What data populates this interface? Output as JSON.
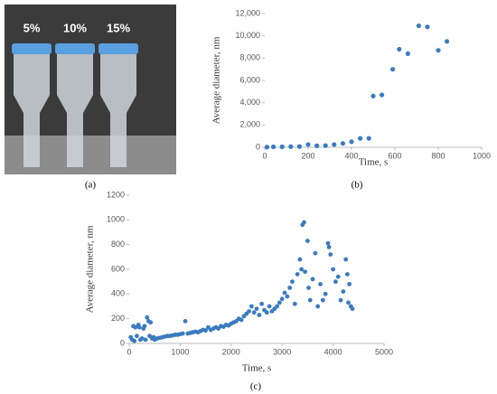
{
  "figure": {
    "photo_labels": [
      "5%",
      "10%",
      "15%"
    ],
    "panel_labels": [
      "(a)",
      "(b)",
      "(c)"
    ]
  },
  "chart_data": [
    {
      "type": "scatter",
      "x_label": "Time,  s",
      "y_label": "Average diameter,  nm",
      "color": "#3a7bbf",
      "x": [
        10,
        40,
        80,
        120,
        160,
        200,
        240,
        280,
        320,
        360,
        400,
        440,
        480,
        500,
        540,
        590,
        620,
        660,
        710,
        750,
        800,
        840
      ],
      "y": [
        20,
        40,
        50,
        60,
        70,
        250,
        130,
        150,
        250,
        350,
        500,
        800,
        800,
        4600,
        4700,
        7000,
        8800,
        8400,
        10900,
        10800,
        8700,
        9500
      ],
      "xlim": [
        0,
        1000
      ],
      "xticks": [
        0,
        200,
        400,
        600,
        800,
        1000
      ],
      "ylim": [
        0,
        12000
      ],
      "yticks": [
        0,
        {
          "value": 2000,
          "label": "2,000"
        },
        {
          "value": 4000,
          "label": "4,000"
        },
        {
          "value": 6000,
          "label": "6,000"
        },
        {
          "value": 8000,
          "label": "8,000"
        },
        {
          "value": 10000,
          "label": "10,000"
        },
        {
          "value": 12000,
          "label": "12,000"
        }
      ]
    },
    {
      "type": "scatter",
      "x_label": "Time,  s",
      "y_label": "Average diameter,  nm",
      "color": "#3a7bbf",
      "x": [
        30,
        60,
        80,
        100,
        120,
        150,
        180,
        200,
        220,
        250,
        280,
        300,
        320,
        350,
        380,
        400,
        420,
        450,
        480,
        500,
        550,
        600,
        650,
        700,
        750,
        800,
        850,
        900,
        950,
        1000,
        1050,
        1100,
        1150,
        1200,
        1250,
        1300,
        1350,
        1400,
        1450,
        1500,
        1550,
        1600,
        1650,
        1700,
        1750,
        1800,
        1850,
        1900,
        1950,
        2000,
        2050,
        2100,
        2150,
        2200,
        2250,
        2300,
        2350,
        2400,
        2450,
        2500,
        2550,
        2600,
        2650,
        2700,
        2750,
        2800,
        2850,
        2900,
        2950,
        3000,
        3050,
        3100,
        3150,
        3200,
        3250,
        3300,
        3350,
        3380,
        3400,
        3430,
        3450,
        3500,
        3520,
        3550,
        3600,
        3650,
        3700,
        3750,
        3800,
        3850,
        3900,
        3920,
        3950,
        4000,
        4050,
        4100,
        4150,
        4200,
        4250,
        4280,
        4300,
        4320,
        4350,
        4380
      ],
      "y": [
        50,
        30,
        140,
        20,
        130,
        60,
        150,
        130,
        30,
        40,
        120,
        140,
        30,
        210,
        180,
        60,
        170,
        40,
        50,
        30,
        40,
        45,
        50,
        55,
        60,
        60,
        65,
        70,
        70,
        75,
        80,
        180,
        80,
        85,
        90,
        95,
        90,
        100,
        110,
        105,
        130,
        110,
        120,
        130,
        120,
        140,
        135,
        150,
        145,
        160,
        170,
        180,
        200,
        190,
        220,
        240,
        260,
        300,
        250,
        280,
        230,
        320,
        270,
        250,
        300,
        260,
        280,
        300,
        330,
        360,
        410,
        380,
        450,
        500,
        320,
        560,
        680,
        600,
        960,
        980,
        580,
        830,
        450,
        350,
        520,
        730,
        300,
        480,
        350,
        400,
        810,
        780,
        720,
        600,
        500,
        540,
        350,
        420,
        680,
        560,
        330,
        480,
        300,
        280
      ],
      "xlim": [
        0,
        5000
      ],
      "xticks": [
        0,
        1000,
        2000,
        3000,
        4000,
        5000
      ],
      "ylim": [
        0,
        1200
      ],
      "yticks": [
        0,
        200,
        400,
        600,
        800,
        1000,
        1200
      ]
    }
  ]
}
